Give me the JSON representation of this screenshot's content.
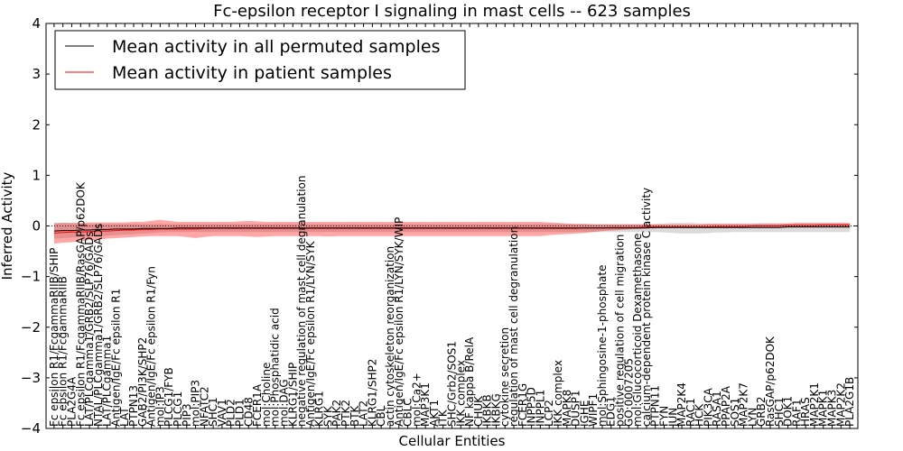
{
  "chart_data": {
    "type": "line",
    "title": "Fc-epsilon receptor I signaling in mast cells -- 623 samples",
    "xlabel": "Cellular Entities",
    "ylabel": "Inferred Activity",
    "ylim": [
      -4,
      4
    ],
    "yticks": [
      4,
      3,
      2,
      1,
      0,
      -1,
      -2,
      -3,
      -4
    ],
    "legend_position": "top-left",
    "reference_line": 0,
    "categories": [
      "Fc epsilon R1/FcgammaRIIB/SHIP",
      "Fc epsilon R1/FcgammaRIIB",
      "PLA2G4A",
      "Fc epsilon R1/FcgammaRIIB/RasGAP/p62DOK",
      "LAT/PLCgamma1/GRB2/SLP76/GADs",
      "NTAL/PLCgamma1/GRB2/SLP76/GADs",
      "LAT/PLCgamma1",
      "Antigen/IgE/Fc epsilon R1",
      "LAT",
      "PTPN13",
      "GAB2/PI3K/SHP2",
      "Antigen/IgE/Fc epsilon R1/Fyn",
      "mol:IP3",
      "PLCG1/FYB",
      "PLCG1",
      "PIP3",
      "mol:PIP3",
      "NFATC2",
      "SHC1",
      "VAV1",
      "PLD2",
      "PLD1",
      "CD48",
      "FCER1A",
      "mol:Choline",
      "mol:Phosphatidic acid",
      "mol:DAG",
      "KLRG1/SHIP",
      "negative regulation of mast cell degranulation",
      "Antigen/IgE/Fc epsilon R1/LYN/SYK",
      "KLRG1",
      "SYK",
      "PAK2",
      "PTK2",
      "BTK",
      "LAT2",
      "KLRG1/SHP2",
      "CBL",
      "actin cytoskeleton reorganization",
      "Antigen/IgE/Fc epsilon R1/LYN/SYK/WIP",
      "CBLC",
      "mol:Ca2+",
      "MAP3K1",
      "AKT1",
      "ITK",
      "SHC/Grb2/SOS1",
      "IKK complex",
      "NF kappa B/RelA",
      "CHUK",
      "IKBKB",
      "IKBKG",
      "cytokine secretion",
      "regulation of mast cell degranulation",
      "FCER1G",
      "INPP5D",
      "INPPL1",
      "LCP2",
      "IKK complex",
      "MAPK8",
      "DUSP1",
      "IGHE",
      "WIPF1",
      "mol:Sphingosine-1-phosphate",
      "EDG1",
      "positive regulation of cell migration",
      "GO:0007205",
      "mol:Glucocorticoid Dexamethasone",
      "calcium-dependent protein kinase C activity",
      "PTPN11",
      "FYN",
      "JUN",
      "MAP2K4",
      "RAC1",
      "HCK",
      "PIK3CA",
      "RASA1",
      "PPAP2A",
      "SOS1",
      "MAP2K7",
      "LYN",
      "GRB2",
      "RasGAP/p62DOK",
      "SHC1",
      "DOK1",
      "RAF1",
      "HRAS",
      "MAP2K1",
      "MAPK1",
      "MAPK3",
      "MAP2K2",
      "PLA2G1B"
    ],
    "series": [
      {
        "name": "Mean activity in all permuted samples",
        "color": "#000000",
        "values": [
          -0.1,
          -0.09,
          -0.09,
          -0.08,
          -0.08,
          -0.07,
          -0.07,
          -0.06,
          -0.06,
          -0.06,
          -0.05,
          -0.05,
          -0.05,
          -0.05,
          -0.04,
          -0.04,
          -0.04,
          -0.04,
          -0.04,
          -0.04,
          -0.04,
          -0.04,
          -0.04,
          -0.04,
          -0.04,
          -0.04,
          -0.04,
          -0.04,
          -0.04,
          -0.04,
          -0.04,
          -0.04,
          -0.04,
          -0.04,
          -0.04,
          -0.04,
          -0.04,
          -0.04,
          -0.04,
          -0.04,
          -0.04,
          -0.04,
          -0.04,
          -0.04,
          -0.04,
          -0.04,
          -0.04,
          -0.04,
          -0.04,
          -0.04,
          -0.04,
          -0.04,
          -0.04,
          -0.04,
          -0.04,
          -0.04,
          -0.04,
          -0.04,
          -0.04,
          -0.04,
          -0.04,
          -0.04,
          -0.04,
          -0.04,
          -0.04,
          -0.04,
          -0.04,
          -0.04,
          -0.03,
          -0.03,
          -0.03,
          -0.03,
          -0.03,
          -0.03,
          -0.03,
          -0.03,
          -0.03,
          -0.03,
          -0.03,
          -0.03,
          -0.03,
          -0.03,
          -0.03,
          -0.02,
          -0.02,
          -0.02,
          -0.02,
          -0.02,
          -0.02,
          -0.02,
          -0.02
        ]
      },
      {
        "name": "Mean activity in patient samples",
        "color": "#ff0000",
        "values": [
          -0.14,
          -0.13,
          -0.12,
          -0.12,
          -0.11,
          -0.1,
          -0.1,
          -0.09,
          -0.08,
          -0.08,
          -0.07,
          -0.07,
          -0.06,
          -0.06,
          -0.06,
          -0.06,
          -0.06,
          -0.05,
          -0.05,
          -0.05,
          -0.05,
          -0.05,
          -0.05,
          -0.05,
          -0.05,
          -0.05,
          -0.05,
          -0.05,
          -0.05,
          -0.05,
          -0.05,
          -0.05,
          -0.05,
          -0.05,
          -0.05,
          -0.05,
          -0.05,
          -0.05,
          -0.05,
          -0.05,
          -0.05,
          -0.05,
          -0.05,
          -0.05,
          -0.05,
          -0.05,
          -0.05,
          -0.05,
          -0.05,
          -0.05,
          -0.05,
          -0.05,
          -0.05,
          -0.05,
          -0.05,
          -0.05,
          -0.05,
          -0.05,
          -0.05,
          -0.05,
          -0.04,
          -0.04,
          -0.04,
          -0.03,
          -0.03,
          -0.03,
          -0.03,
          -0.02,
          -0.02,
          -0.02,
          -0.02,
          -0.02,
          -0.02,
          -0.02,
          -0.02,
          -0.01,
          -0.01,
          -0.01,
          -0.01,
          0.0,
          0.0,
          0.0,
          0.0,
          0.01,
          0.01,
          0.01,
          0.01,
          0.02,
          0.02,
          0.02,
          0.02
        ]
      }
    ],
    "bands": [
      {
        "series": "Mean activity in all permuted samples",
        "color": "#999999",
        "lower": [
          -0.25,
          -0.24,
          -0.23,
          -0.22,
          -0.21,
          -0.2,
          -0.19,
          -0.18,
          -0.17,
          -0.16,
          -0.15,
          -0.14,
          -0.13,
          -0.12,
          -0.12,
          -0.12,
          -0.12,
          -0.12,
          -0.12,
          -0.12,
          -0.12,
          -0.12,
          -0.12,
          -0.12,
          -0.12,
          -0.12,
          -0.12,
          -0.12,
          -0.12,
          -0.12,
          -0.12,
          -0.12,
          -0.12,
          -0.12,
          -0.12,
          -0.12,
          -0.12,
          -0.12,
          -0.12,
          -0.12,
          -0.12,
          -0.12,
          -0.12,
          -0.12,
          -0.12,
          -0.12,
          -0.12,
          -0.12,
          -0.12,
          -0.12,
          -0.12,
          -0.12,
          -0.12,
          -0.12,
          -0.12,
          -0.12,
          -0.12,
          -0.12,
          -0.12,
          -0.12,
          -0.12,
          -0.12,
          -0.12,
          -0.12,
          -0.12,
          -0.12,
          -0.12,
          -0.12,
          -0.12,
          -0.13,
          -0.14,
          -0.15,
          -0.15,
          -0.15,
          -0.14,
          -0.13,
          -0.13,
          -0.12,
          -0.12,
          -0.12,
          -0.12,
          -0.12,
          -0.12,
          -0.12,
          -0.12,
          -0.12,
          -0.12,
          -0.12,
          -0.12,
          -0.12,
          -0.12
        ],
        "upper": [
          0.06,
          0.06,
          0.05,
          0.05,
          0.04,
          0.04,
          0.04,
          0.04,
          0.04,
          0.04,
          0.04,
          0.04,
          0.04,
          0.04,
          0.04,
          0.04,
          0.04,
          0.04,
          0.04,
          0.04,
          0.04,
          0.04,
          0.04,
          0.04,
          0.04,
          0.04,
          0.04,
          0.04,
          0.04,
          0.04,
          0.04,
          0.04,
          0.04,
          0.04,
          0.04,
          0.04,
          0.04,
          0.04,
          0.04,
          0.04,
          0.04,
          0.04,
          0.04,
          0.04,
          0.04,
          0.04,
          0.04,
          0.04,
          0.04,
          0.04,
          0.04,
          0.04,
          0.04,
          0.04,
          0.04,
          0.04,
          0.04,
          0.04,
          0.04,
          0.04,
          0.04,
          0.04,
          0.04,
          0.04,
          0.04,
          0.04,
          0.04,
          0.04,
          0.04,
          0.05,
          0.06,
          0.06,
          0.06,
          0.05,
          0.05,
          0.05,
          0.05,
          0.05,
          0.05,
          0.05,
          0.05,
          0.05,
          0.05,
          0.05,
          0.05,
          0.05,
          0.05,
          0.05,
          0.05,
          0.05,
          0.05
        ]
      },
      {
        "series": "Mean activity in patient samples",
        "color": "#ff0000",
        "lower": [
          -0.35,
          -0.33,
          -0.32,
          -0.3,
          -0.28,
          -0.27,
          -0.25,
          -0.24,
          -0.23,
          -0.22,
          -0.21,
          -0.2,
          -0.2,
          -0.2,
          -0.2,
          -0.22,
          -0.24,
          -0.22,
          -0.2,
          -0.2,
          -0.2,
          -0.2,
          -0.21,
          -0.22,
          -0.21,
          -0.2,
          -0.2,
          -0.2,
          -0.2,
          -0.2,
          -0.2,
          -0.21,
          -0.2,
          -0.2,
          -0.2,
          -0.2,
          -0.2,
          -0.2,
          -0.2,
          -0.2,
          -0.2,
          -0.2,
          -0.2,
          -0.2,
          -0.2,
          -0.2,
          -0.2,
          -0.2,
          -0.2,
          -0.2,
          -0.2,
          -0.2,
          -0.2,
          -0.2,
          -0.2,
          -0.2,
          -0.18,
          -0.17,
          -0.16,
          -0.15,
          -0.14,
          -0.12,
          -0.1,
          -0.09,
          -0.08,
          -0.07,
          -0.06,
          -0.05,
          -0.05,
          -0.04,
          -0.04,
          -0.04,
          -0.04,
          -0.04,
          -0.04,
          -0.04,
          -0.04,
          -0.04,
          -0.04,
          -0.04,
          -0.04,
          -0.04,
          -0.04,
          -0.03,
          -0.03,
          -0.03,
          -0.03,
          -0.03,
          -0.03,
          -0.03,
          -0.03
        ],
        "upper": [
          0.05,
          0.06,
          0.06,
          0.06,
          0.07,
          0.07,
          0.07,
          0.07,
          0.07,
          0.08,
          0.08,
          0.1,
          0.12,
          0.1,
          0.08,
          0.08,
          0.08,
          0.08,
          0.08,
          0.08,
          0.08,
          0.09,
          0.1,
          0.09,
          0.08,
          0.08,
          0.08,
          0.08,
          0.08,
          0.08,
          0.08,
          0.08,
          0.08,
          0.08,
          0.08,
          0.08,
          0.08,
          0.08,
          0.08,
          0.08,
          0.08,
          0.08,
          0.08,
          0.08,
          0.08,
          0.08,
          0.08,
          0.08,
          0.08,
          0.08,
          0.08,
          0.08,
          0.08,
          0.08,
          0.08,
          0.08,
          0.07,
          0.06,
          0.05,
          0.04,
          0.04,
          0.03,
          0.03,
          0.03,
          0.03,
          0.03,
          0.03,
          0.03,
          0.03,
          0.03,
          0.03,
          0.03,
          0.03,
          0.03,
          0.04,
          0.04,
          0.04,
          0.04,
          0.04,
          0.04,
          0.05,
          0.05,
          0.05,
          0.05,
          0.06,
          0.06,
          0.06,
          0.06,
          0.06,
          0.06,
          0.06
        ]
      }
    ]
  }
}
